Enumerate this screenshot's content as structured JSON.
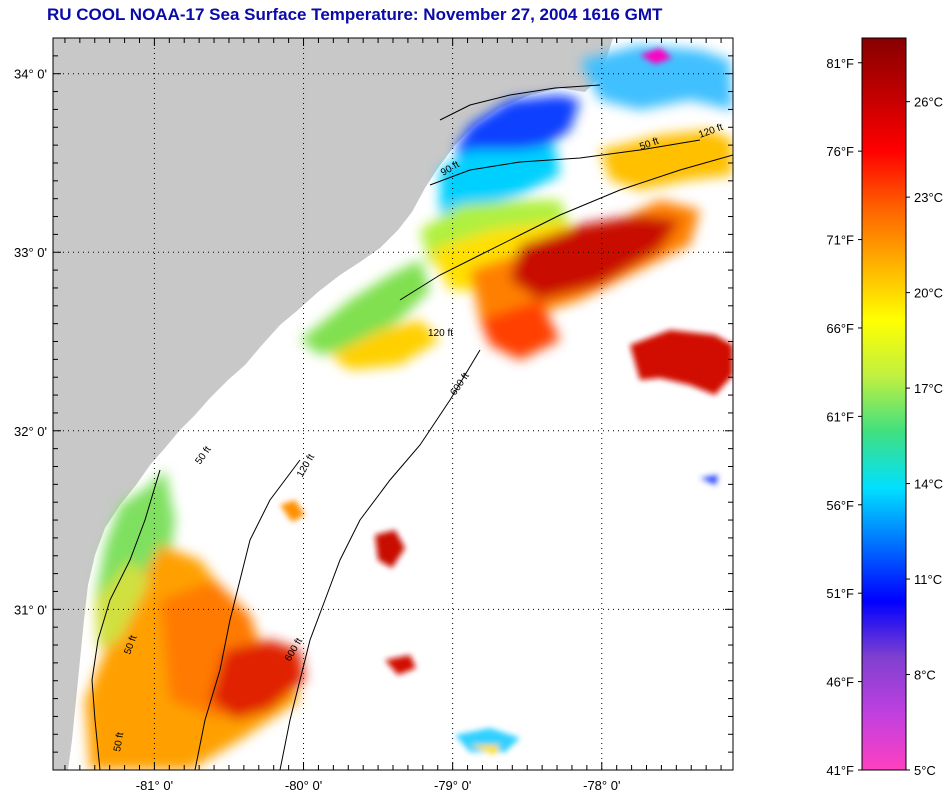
{
  "title": "RU COOL  NOAA-17  Sea Surface Temperature:  November 27, 2004 1616 GMT",
  "map": {
    "lon_range": [
      -81.68,
      -77.12
    ],
    "lat_range": [
      30.1,
      34.2
    ],
    "lat_ticks": [
      {
        "value": 34,
        "label": "34° 0'"
      },
      {
        "value": 33,
        "label": "33° 0'"
      },
      {
        "value": 32,
        "label": "32° 0'"
      },
      {
        "value": 31,
        "label": "31° 0'"
      }
    ],
    "lon_ticks": [
      {
        "value": -81,
        "label": "-81° 0'"
      },
      {
        "value": -80,
        "label": "-80° 0'"
      },
      {
        "value": -79,
        "label": "-79° 0'"
      },
      {
        "value": -78,
        "label": "-78° 0'"
      }
    ],
    "contour_labels": [
      "50 ft",
      "90 ft",
      "120 ft",
      "600 ft"
    ],
    "colors": {
      "land": "#c8c8c8",
      "ocean_nodata": "#ffffff",
      "grid": "#000000"
    }
  },
  "colorbar": {
    "range_c": [
      5,
      28
    ],
    "fahrenheit_ticks": [
      {
        "value": 81,
        "label": "81°F"
      },
      {
        "value": 76,
        "label": "76°F"
      },
      {
        "value": 71,
        "label": "71°F"
      },
      {
        "value": 66,
        "label": "66°F"
      },
      {
        "value": 61,
        "label": "61°F"
      },
      {
        "value": 56,
        "label": "56°F"
      },
      {
        "value": 51,
        "label": "51°F"
      },
      {
        "value": 46,
        "label": "46°F"
      },
      {
        "value": 41,
        "label": "41°F"
      }
    ],
    "celsius_ticks": [
      {
        "value": 26,
        "label": "26°C"
      },
      {
        "value": 23,
        "label": "23°C"
      },
      {
        "value": 20,
        "label": "20°C"
      },
      {
        "value": 17,
        "label": "17°C"
      },
      {
        "value": 14,
        "label": "14°C"
      },
      {
        "value": 11,
        "label": "11°C"
      },
      {
        "value": 8,
        "label": "8°C"
      },
      {
        "value": 5,
        "label": "5°C"
      }
    ],
    "stops": [
      "#ff40c0",
      "#c040e0",
      "#8040d0",
      "#0000ff",
      "#0070ff",
      "#00e0ff",
      "#40e080",
      "#c0f040",
      "#ffff00",
      "#ffb000",
      "#ff6000",
      "#ff0000",
      "#c00000",
      "#880000"
    ]
  }
}
